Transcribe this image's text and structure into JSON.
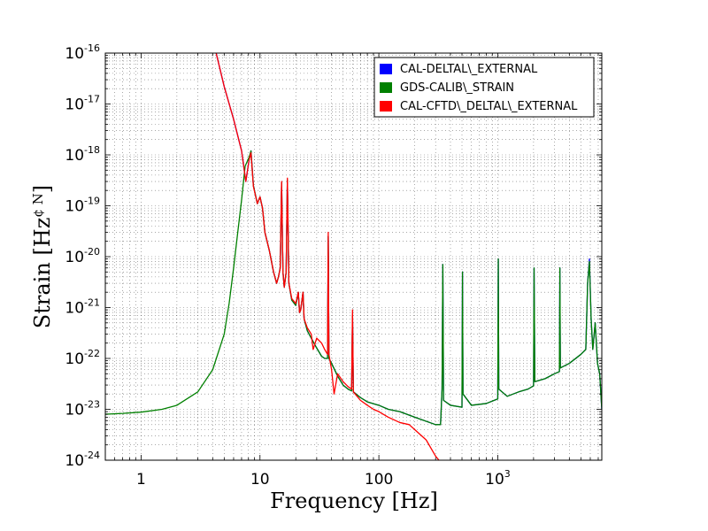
{
  "chart_data": {
    "type": "line",
    "title": "",
    "xlabel": "Frequency [Hz]",
    "ylabel_main": "Strain [Hz",
    "ylabel_tail": "]",
    "ylabel_sup": "¢ N",
    "xscale": "log",
    "yscale": "log",
    "xlim": [
      0.5,
      7500
    ],
    "ylim": [
      1e-24,
      1e-16
    ],
    "grid": true,
    "legend_position": "top-right",
    "x_ticks": [
      {
        "value": 1,
        "label": "1"
      },
      {
        "value": 10,
        "label": "10"
      },
      {
        "value": 100,
        "label": "100"
      },
      {
        "value": 1000,
        "label": "10",
        "sup": "3"
      }
    ],
    "y_ticks": [
      {
        "value": 1e-16,
        "label": "10",
        "sup": "-16"
      },
      {
        "value": 1e-17,
        "label": "10",
        "sup": "-17"
      },
      {
        "value": 1e-18,
        "label": "10",
        "sup": "-18"
      },
      {
        "value": 1e-19,
        "label": "10",
        "sup": "-19"
      },
      {
        "value": 1e-20,
        "label": "10",
        "sup": "-20"
      },
      {
        "value": 1e-21,
        "label": "10",
        "sup": "-21"
      },
      {
        "value": 1e-22,
        "label": "10",
        "sup": "-22"
      },
      {
        "value": 1e-23,
        "label": "10",
        "sup": "-23"
      },
      {
        "value": 1e-24,
        "label": "10",
        "sup": "-24"
      }
    ],
    "series": [
      {
        "name": "CAL-DELTAL\\_EXTERNAL",
        "color": "#0000ff",
        "points": [
          [
            4.2,
            1.2e-16
          ],
          [
            5,
            2.2e-17
          ],
          [
            6,
            5e-18
          ],
          [
            7,
            1.2e-18
          ],
          [
            7.6,
            3e-19
          ],
          [
            8.1,
            8e-19
          ],
          [
            8.4,
            1.2e-18
          ],
          [
            8.8,
            2.5e-19
          ],
          [
            9.5,
            1.1e-19
          ],
          [
            10,
            1.5e-19
          ],
          [
            10.5,
            9e-20
          ],
          [
            11,
            3e-20
          ],
          [
            12,
            1.3e-20
          ],
          [
            13,
            5e-21
          ],
          [
            13.8,
            3e-21
          ],
          [
            14.3,
            4e-21
          ],
          [
            14.8,
            6e-21
          ],
          [
            15.2,
            2.8e-19
          ],
          [
            15.6,
            5e-21
          ],
          [
            16,
            2.5e-21
          ],
          [
            16.6,
            5e-21
          ],
          [
            17,
            3.2e-19
          ],
          [
            17.5,
            3e-21
          ],
          [
            18.5,
            1.4e-21
          ],
          [
            20,
            1.1e-21
          ],
          [
            21,
            2e-21
          ],
          [
            21.5,
            8e-22
          ],
          [
            22,
            9e-22
          ],
          [
            23,
            2e-21
          ],
          [
            23.5,
            6e-22
          ],
          [
            25,
            3.5e-22
          ],
          [
            27,
            2.5e-22
          ],
          [
            30,
            1.6e-22
          ],
          [
            33,
            1.1e-22
          ],
          [
            35,
            1e-22
          ],
          [
            37,
            1e-22
          ],
          [
            37.5,
            2.5e-20
          ],
          [
            38,
            1e-22
          ],
          [
            40,
            8e-23
          ],
          [
            45,
            4.5e-23
          ],
          [
            50,
            3e-23
          ],
          [
            55,
            2.5e-23
          ],
          [
            59,
            2.3e-23
          ],
          [
            60,
            7e-22
          ],
          [
            61,
            2.2e-23
          ],
          [
            70,
            1.7e-23
          ],
          [
            80,
            1.4e-23
          ],
          [
            100,
            1.2e-23
          ],
          [
            120,
            1e-23
          ],
          [
            150,
            9e-24
          ],
          [
            200,
            7e-24
          ],
          [
            300,
            5e-24
          ],
          [
            330,
            5e-24
          ],
          [
            340,
            2.5e-23
          ],
          [
            345,
            7e-21
          ],
          [
            350,
            1.5e-23
          ],
          [
            400,
            1.2e-23
          ],
          [
            500,
            1.1e-23
          ],
          [
            505,
            5e-21
          ],
          [
            510,
            2e-23
          ],
          [
            600,
            1.2e-23
          ],
          [
            800,
            1.3e-23
          ],
          [
            1000,
            1.6e-23
          ],
          [
            1010,
            9e-21
          ],
          [
            1020,
            2.5e-23
          ],
          [
            1200,
            1.8e-23
          ],
          [
            1500,
            2.2e-23
          ],
          [
            1800,
            2.5e-23
          ],
          [
            2000,
            2.9e-23
          ],
          [
            2020,
            6e-21
          ],
          [
            2050,
            3.5e-23
          ],
          [
            2500,
            4e-23
          ],
          [
            3000,
            5e-23
          ],
          [
            3300,
            5.5e-23
          ],
          [
            3330,
            6e-21
          ],
          [
            3360,
            6.5e-23
          ],
          [
            4000,
            8e-23
          ],
          [
            5000,
            1.2e-22
          ],
          [
            5500,
            1.5e-22
          ],
          [
            5700,
            3e-21
          ],
          [
            5900,
            9e-21
          ],
          [
            6100,
            6e-22
          ],
          [
            6300,
            1.5e-22
          ],
          [
            6600,
            5e-22
          ],
          [
            6900,
            8e-23
          ],
          [
            7200,
            5e-23
          ],
          [
            7500,
            1e-23
          ]
        ]
      },
      {
        "name": "GDS-CALIB\\_STRAIN",
        "color": "#008000",
        "points": [
          [
            0.5,
            8e-24
          ],
          [
            0.7,
            8.3e-24
          ],
          [
            1,
            8.8e-24
          ],
          [
            1.5,
            1e-23
          ],
          [
            2,
            1.2e-23
          ],
          [
            3,
            2.2e-23
          ],
          [
            4,
            6e-23
          ],
          [
            5,
            3e-22
          ],
          [
            5.5,
            1.2e-21
          ],
          [
            6,
            6e-21
          ],
          [
            6.5,
            3e-20
          ],
          [
            7,
            1.3e-19
          ],
          [
            7.5,
            6e-19
          ],
          [
            8.1,
            9e-19
          ],
          [
            8.4,
            1.2e-18
          ],
          [
            8.8,
            2.5e-19
          ],
          [
            9.5,
            1.1e-19
          ],
          [
            10,
            1.5e-19
          ],
          [
            10.5,
            9e-20
          ],
          [
            11,
            3e-20
          ],
          [
            12,
            1.3e-20
          ],
          [
            13,
            5e-21
          ],
          [
            13.8,
            3e-21
          ],
          [
            14.3,
            4e-21
          ],
          [
            14.8,
            6e-21
          ],
          [
            15.2,
            2.8e-19
          ],
          [
            15.6,
            5e-21
          ],
          [
            16,
            2.5e-21
          ],
          [
            16.6,
            5e-21
          ],
          [
            17,
            3.2e-19
          ],
          [
            17.5,
            3e-21
          ],
          [
            18.5,
            1.4e-21
          ],
          [
            20,
            1.1e-21
          ],
          [
            21,
            2e-21
          ],
          [
            21.5,
            8e-22
          ],
          [
            22,
            9e-22
          ],
          [
            23,
            2e-21
          ],
          [
            23.5,
            6e-22
          ],
          [
            25,
            3.5e-22
          ],
          [
            27,
            2.5e-22
          ],
          [
            30,
            1.6e-22
          ],
          [
            33,
            1.1e-22
          ],
          [
            35,
            1e-22
          ],
          [
            37,
            1e-22
          ],
          [
            37.5,
            2.5e-20
          ],
          [
            38,
            1e-22
          ],
          [
            40,
            8e-23
          ],
          [
            45,
            4.5e-23
          ],
          [
            50,
            3e-23
          ],
          [
            55,
            2.5e-23
          ],
          [
            59,
            2.3e-23
          ],
          [
            60,
            7e-22
          ],
          [
            61,
            2.2e-23
          ],
          [
            70,
            1.7e-23
          ],
          [
            80,
            1.4e-23
          ],
          [
            100,
            1.2e-23
          ],
          [
            120,
            1e-23
          ],
          [
            150,
            9e-24
          ],
          [
            200,
            7e-24
          ],
          [
            300,
            5e-24
          ],
          [
            330,
            5e-24
          ],
          [
            340,
            2.5e-23
          ],
          [
            345,
            7e-21
          ],
          [
            350,
            1.5e-23
          ],
          [
            400,
            1.2e-23
          ],
          [
            500,
            1.1e-23
          ],
          [
            505,
            5e-21
          ],
          [
            510,
            2e-23
          ],
          [
            600,
            1.2e-23
          ],
          [
            800,
            1.3e-23
          ],
          [
            1000,
            1.6e-23
          ],
          [
            1010,
            9e-21
          ],
          [
            1020,
            2.5e-23
          ],
          [
            1200,
            1.8e-23
          ],
          [
            1500,
            2.2e-23
          ],
          [
            1800,
            2.5e-23
          ],
          [
            2000,
            2.9e-23
          ],
          [
            2020,
            6e-21
          ],
          [
            2050,
            3.5e-23
          ],
          [
            2500,
            4e-23
          ],
          [
            3000,
            5e-23
          ],
          [
            3300,
            5.5e-23
          ],
          [
            3330,
            6e-21
          ],
          [
            3360,
            6.5e-23
          ],
          [
            4000,
            8e-23
          ],
          [
            5000,
            1.2e-22
          ],
          [
            5500,
            1.5e-22
          ],
          [
            5700,
            3e-21
          ],
          [
            5900,
            8e-21
          ],
          [
            6100,
            6e-22
          ],
          [
            6300,
            1.5e-22
          ],
          [
            6600,
            5e-22
          ],
          [
            6900,
            8e-23
          ],
          [
            7200,
            5e-23
          ],
          [
            7500,
            1e-23
          ]
        ]
      },
      {
        "name": "CAL-CFTD\\_DELTAL\\_EXTERNAL",
        "color": "#ff0000",
        "points": [
          [
            4.2,
            1.2e-16
          ],
          [
            5,
            2.2e-17
          ],
          [
            6,
            5e-18
          ],
          [
            7,
            1.2e-18
          ],
          [
            7.6,
            3e-19
          ],
          [
            8.1,
            8e-19
          ],
          [
            8.4,
            1.1e-18
          ],
          [
            8.8,
            2.4e-19
          ],
          [
            9.5,
            1.1e-19
          ],
          [
            10,
            1.5e-19
          ],
          [
            10.5,
            9e-20
          ],
          [
            11,
            3e-20
          ],
          [
            12,
            1.3e-20
          ],
          [
            13,
            5e-21
          ],
          [
            13.8,
            3e-21
          ],
          [
            14.3,
            4e-21
          ],
          [
            14.8,
            6e-21
          ],
          [
            15.2,
            3e-19
          ],
          [
            15.6,
            5e-21
          ],
          [
            16,
            2.5e-21
          ],
          [
            16.6,
            5e-21
          ],
          [
            17,
            3.5e-19
          ],
          [
            17.5,
            3e-21
          ],
          [
            18.5,
            1.5e-21
          ],
          [
            20,
            1.2e-21
          ],
          [
            21,
            2e-21
          ],
          [
            21.5,
            8e-22
          ],
          [
            22,
            9e-22
          ],
          [
            23,
            2e-21
          ],
          [
            23.5,
            6e-22
          ],
          [
            25,
            4e-22
          ],
          [
            27,
            3e-22
          ],
          [
            28,
            1.5e-22
          ],
          [
            30,
            2.5e-22
          ],
          [
            33,
            2e-22
          ],
          [
            35,
            1.5e-22
          ],
          [
            37,
            1.2e-22
          ],
          [
            37.5,
            3e-20
          ],
          [
            38,
            1.2e-22
          ],
          [
            40,
            6e-23
          ],
          [
            42,
            2e-23
          ],
          [
            45,
            5e-23
          ],
          [
            50,
            3.5e-23
          ],
          [
            55,
            2.8e-23
          ],
          [
            59,
            2.5e-23
          ],
          [
            60,
            9e-22
          ],
          [
            61,
            2.2e-23
          ],
          [
            70,
            1.5e-23
          ],
          [
            80,
            1.2e-23
          ],
          [
            90,
            1e-23
          ],
          [
            100,
            9e-24
          ],
          [
            120,
            7e-24
          ],
          [
            150,
            5.5e-24
          ],
          [
            180,
            5e-24
          ],
          [
            200,
            4e-24
          ],
          [
            250,
            2.5e-24
          ],
          [
            300,
            1.2e-24
          ],
          [
            320,
            1e-24
          ]
        ]
      }
    ]
  }
}
